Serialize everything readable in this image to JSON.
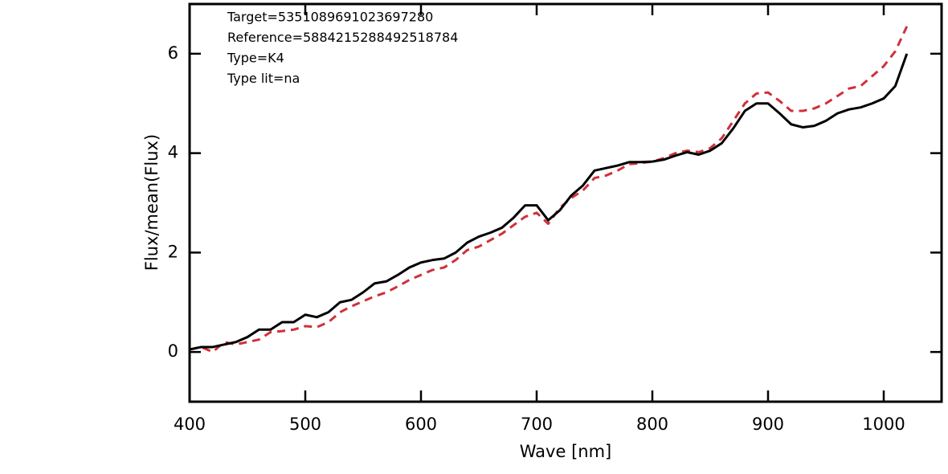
{
  "chart_data": {
    "type": "line",
    "annotations": [
      "Target=5351089691023697280",
      "Reference=5884215288492518784",
      "Type=K4",
      "Type lit=na"
    ],
    "x_label": "Wave [nm]",
    "y_label": "Flux/mean(Flux)",
    "x": [
      400,
      410,
      420,
      430,
      440,
      450,
      460,
      470,
      480,
      490,
      500,
      510,
      520,
      530,
      540,
      550,
      560,
      570,
      580,
      590,
      600,
      610,
      620,
      630,
      640,
      650,
      660,
      670,
      680,
      690,
      700,
      710,
      720,
      730,
      740,
      750,
      760,
      770,
      780,
      790,
      800,
      810,
      820,
      830,
      840,
      850,
      860,
      870,
      880,
      890,
      900,
      910,
      920,
      930,
      940,
      950,
      960,
      970,
      980,
      990,
      1000,
      1010,
      1020
    ],
    "series": [
      {
        "color": "#000000",
        "dash": false,
        "values": [
          0.05,
          0.1,
          0.1,
          0.15,
          0.2,
          0.3,
          0.45,
          0.45,
          0.6,
          0.6,
          0.75,
          0.7,
          0.8,
          1.0,
          1.05,
          1.2,
          1.38,
          1.42,
          1.55,
          1.7,
          1.8,
          1.85,
          1.88,
          2.0,
          2.2,
          2.32,
          2.4,
          2.5,
          2.7,
          2.95,
          2.95,
          2.65,
          2.85,
          3.15,
          3.35,
          3.65,
          3.7,
          3.75,
          3.82,
          3.82,
          3.83,
          3.87,
          3.95,
          4.02,
          3.97,
          4.05,
          4.2,
          4.5,
          4.85,
          5.0,
          5.0,
          4.8,
          4.58,
          4.52,
          4.55,
          4.65,
          4.8,
          4.88,
          4.92,
          5.0,
          5.1,
          5.35,
          6.0
        ]
      },
      {
        "color": "#d0303a",
        "dash": true,
        "values": [
          0.05,
          0.1,
          0.0,
          0.2,
          0.15,
          0.2,
          0.25,
          0.4,
          0.42,
          0.45,
          0.52,
          0.5,
          0.6,
          0.8,
          0.92,
          1.02,
          1.12,
          1.2,
          1.32,
          1.45,
          1.55,
          1.65,
          1.7,
          1.85,
          2.05,
          2.12,
          2.25,
          2.38,
          2.55,
          2.72,
          2.8,
          2.58,
          2.9,
          3.1,
          3.25,
          3.5,
          3.55,
          3.65,
          3.78,
          3.8,
          3.83,
          3.9,
          4.0,
          4.05,
          4.02,
          4.1,
          4.3,
          4.65,
          5.0,
          5.2,
          5.22,
          5.05,
          4.85,
          4.85,
          4.9,
          5.0,
          5.15,
          5.3,
          5.35,
          5.55,
          5.75,
          6.05,
          6.55
        ]
      }
    ],
    "xlim": [
      400,
      1050
    ],
    "ylim": [
      -1,
      7
    ],
    "xticks": [
      400,
      500,
      600,
      700,
      800,
      900,
      1000
    ],
    "yticks": [
      0,
      2,
      4,
      6
    ]
  }
}
